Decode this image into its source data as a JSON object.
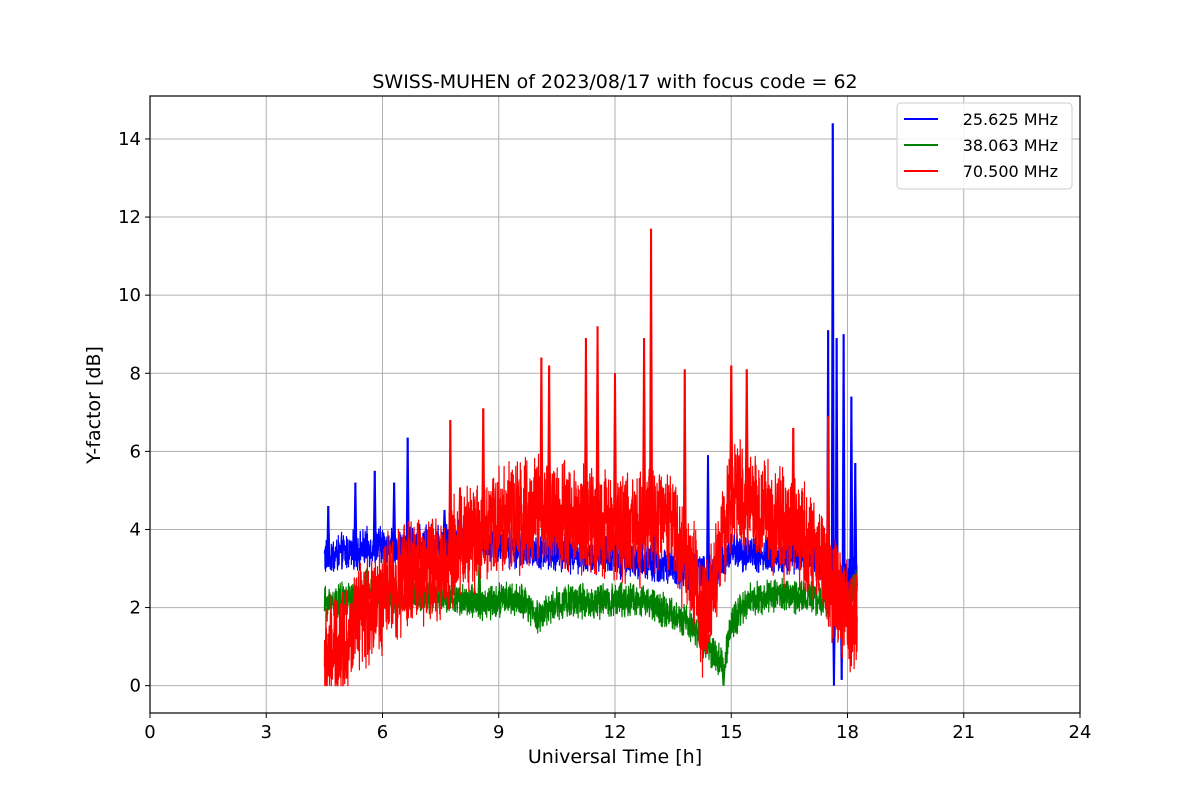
{
  "chart_data": {
    "type": "line",
    "title": "SWISS-MUHEN of 2023/08/17 with focus code = 62",
    "xlabel": "Universal Time [h]",
    "ylabel": "Y-factor [dB]",
    "xlim": [
      0,
      24
    ],
    "ylim": [
      -0.7,
      15.1
    ],
    "xticks": [
      0,
      3,
      6,
      9,
      12,
      15,
      18,
      21,
      24
    ],
    "yticks": [
      0,
      2,
      4,
      6,
      8,
      10,
      12,
      14
    ],
    "grid": true,
    "legend_position": "top-right",
    "series": [
      {
        "name": "25.625 MHz",
        "color": "#0000ff",
        "noise": 0.8,
        "x": [
          4.5,
          5.0,
          5.5,
          6.0,
          6.5,
          7.0,
          7.5,
          8.0,
          8.5,
          9.0,
          9.5,
          10.0,
          10.5,
          11.0,
          11.5,
          12.0,
          12.5,
          13.0,
          13.5,
          14.0,
          14.3,
          14.5,
          15.0,
          15.5,
          16.0,
          16.5,
          17.0,
          17.3,
          17.5,
          17.7,
          18.0,
          18.25
        ],
        "y": [
          3.3,
          3.4,
          3.5,
          3.6,
          3.5,
          3.6,
          3.7,
          3.8,
          3.7,
          3.6,
          3.5,
          3.5,
          3.4,
          3.4,
          3.3,
          3.3,
          3.2,
          3.1,
          3.0,
          3.0,
          2.9,
          2.8,
          3.5,
          3.4,
          3.3,
          3.3,
          3.4,
          3.2,
          2.5,
          2.2,
          2.7,
          3.0
        ],
        "spikes": [
          [
            4.6,
            4.6
          ],
          [
            5.3,
            5.2
          ],
          [
            5.8,
            5.5
          ],
          [
            6.3,
            5.2
          ],
          [
            6.65,
            6.35
          ],
          [
            7.6,
            4.5
          ],
          [
            13.0,
            4.0
          ],
          [
            14.4,
            5.9
          ],
          [
            17.5,
            9.1
          ],
          [
            17.62,
            14.4
          ],
          [
            17.72,
            8.9
          ],
          [
            17.9,
            9.0
          ],
          [
            18.1,
            7.4
          ],
          [
            18.2,
            5.7
          ],
          [
            17.65,
            0.0
          ],
          [
            17.85,
            0.15
          ]
        ]
      },
      {
        "name": "38.063 MHz",
        "color": "#008000",
        "noise": 0.7,
        "x": [
          4.5,
          5.0,
          5.5,
          6.0,
          6.5,
          7.0,
          7.5,
          8.0,
          8.5,
          9.0,
          9.5,
          10.0,
          10.5,
          11.0,
          11.5,
          12.0,
          12.5,
          13.0,
          13.5,
          14.0,
          14.5,
          14.8,
          15.0,
          15.5,
          16.0,
          16.5,
          17.0,
          17.5,
          18.0,
          18.25
        ],
        "y": [
          2.1,
          2.2,
          2.3,
          2.3,
          2.3,
          2.3,
          2.3,
          2.2,
          2.1,
          2.2,
          2.2,
          1.8,
          2.1,
          2.2,
          2.1,
          2.2,
          2.2,
          2.1,
          1.8,
          1.5,
          0.9,
          0.5,
          1.6,
          2.2,
          2.3,
          2.3,
          2.3,
          2.2,
          2.2,
          2.6
        ],
        "spikes": [
          [
            5.6,
            3.0
          ],
          [
            8.5,
            3.2
          ],
          [
            14.8,
            0.0
          ]
        ]
      },
      {
        "name": "70.500 MHz",
        "color": "#ff0000",
        "noise": 2.3,
        "x": [
          4.5,
          4.8,
          5.2,
          5.6,
          6.0,
          6.5,
          7.0,
          7.5,
          8.0,
          8.5,
          9.0,
          9.5,
          10.0,
          10.5,
          11.0,
          11.5,
          12.0,
          12.5,
          13.0,
          13.5,
          14.0,
          14.3,
          14.5,
          15.0,
          15.5,
          16.0,
          16.5,
          17.0,
          17.5,
          18.0,
          18.25
        ],
        "y": [
          0.6,
          1.0,
          1.3,
          1.9,
          2.3,
          2.7,
          3.0,
          3.0,
          3.7,
          4.0,
          4.3,
          4.3,
          4.4,
          4.3,
          4.3,
          4.2,
          4.1,
          4.0,
          4.3,
          4.0,
          2.8,
          1.6,
          2.4,
          5.0,
          4.8,
          4.3,
          4.0,
          3.8,
          2.7,
          1.9,
          1.6
        ],
        "spikes": [
          [
            4.55,
            0.0
          ],
          [
            4.8,
            0.05
          ],
          [
            7.75,
            6.8
          ],
          [
            8.6,
            7.1
          ],
          [
            10.1,
            8.4
          ],
          [
            10.3,
            8.2
          ],
          [
            11.25,
            8.9
          ],
          [
            11.55,
            9.2
          ],
          [
            12.0,
            8.0
          ],
          [
            12.75,
            8.9
          ],
          [
            12.93,
            11.7
          ],
          [
            13.8,
            8.1
          ],
          [
            15.0,
            8.2
          ],
          [
            15.4,
            8.1
          ],
          [
            16.6,
            6.6
          ],
          [
            17.5,
            6.9
          ],
          [
            18.1,
            1.0
          ]
        ]
      }
    ]
  }
}
